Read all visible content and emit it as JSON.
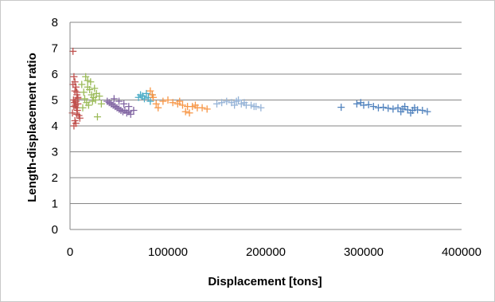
{
  "chart_data": {
    "type": "scatter",
    "title": "",
    "xlabel": "Displacement [tons]",
    "ylabel": "Length-displacement ratio",
    "xlim": [
      0,
      400000
    ],
    "ylim": [
      0,
      8
    ],
    "x_ticks": [
      "0",
      "100000",
      "200000",
      "300000",
      "400000"
    ],
    "y_ticks": [
      "0",
      "1",
      "2",
      "3",
      "4",
      "5",
      "6",
      "7",
      "8"
    ],
    "grid": "horizontal",
    "legend": "none",
    "marker": "plus",
    "series": [
      {
        "color": "#c0504d",
        "x": [
          3000,
          4000,
          5000,
          6000,
          7000,
          8000,
          3500,
          4500,
          5500,
          6500,
          7500,
          2500,
          9000,
          10000,
          5000,
          6000,
          4000,
          7000,
          8000,
          3000,
          6000,
          5000,
          7000,
          4000,
          8000
        ],
        "y": [
          6.88,
          5.9,
          5.7,
          5.5,
          5.3,
          5.1,
          5.0,
          4.9,
          4.8,
          4.7,
          4.6,
          4.5,
          4.4,
          4.3,
          4.2,
          4.1,
          4.0,
          5.2,
          4.85,
          5.6,
          4.95,
          5.35,
          4.45,
          4.75,
          5.05
        ]
      },
      {
        "color": "#9bbb59",
        "x": [
          12000,
          14000,
          16000,
          18000,
          20000,
          22000,
          24000,
          26000,
          17000,
          19000,
          21000,
          15000,
          23000,
          28000,
          30000,
          32000,
          25000,
          18000,
          13000,
          27000
        ],
        "y": [
          5.6,
          5.3,
          5.9,
          5.5,
          5.4,
          5.2,
          5.1,
          5.0,
          4.9,
          4.8,
          5.7,
          5.05,
          4.95,
          4.35,
          5.15,
          4.85,
          5.45,
          5.75,
          4.7,
          5.25
        ]
      },
      {
        "color": "#8064a2",
        "x": [
          38000,
          40000,
          42000,
          44000,
          46000,
          48000,
          50000,
          52000,
          54000,
          56000,
          58000,
          60000,
          62000,
          45000,
          50000,
          55000,
          60000,
          65000
        ],
        "y": [
          4.95,
          4.9,
          4.85,
          4.8,
          4.75,
          4.7,
          4.65,
          4.6,
          4.55,
          4.6,
          4.5,
          4.55,
          4.45,
          5.05,
          4.95,
          4.85,
          4.75,
          4.6
        ]
      },
      {
        "color": "#4bacc6",
        "x": [
          70000,
          72000,
          74000,
          76000,
          78000,
          80000,
          82000,
          84000
        ],
        "y": [
          5.1,
          5.2,
          5.15,
          5.05,
          5.25,
          5.1,
          4.95,
          5.2
        ]
      },
      {
        "color": "#f79646",
        "x": [
          82000,
          85000,
          88000,
          90000,
          95000,
          100000,
          105000,
          110000,
          115000,
          120000,
          125000,
          130000,
          135000,
          140000,
          112000,
          118000,
          122000,
          128000,
          84000
        ],
        "y": [
          5.35,
          5.1,
          4.85,
          4.7,
          4.95,
          5.0,
          4.9,
          4.85,
          4.8,
          4.75,
          4.75,
          4.7,
          4.7,
          4.65,
          4.95,
          4.55,
          4.5,
          4.8,
          5.2
        ]
      },
      {
        "color": "#95b3d7",
        "x": [
          150000,
          155000,
          160000,
          165000,
          170000,
          172000,
          175000,
          180000,
          185000,
          190000,
          195000,
          178000,
          168000,
          188000
        ],
        "y": [
          4.85,
          4.9,
          4.95,
          4.9,
          4.95,
          5.0,
          4.85,
          4.8,
          4.8,
          4.75,
          4.7,
          4.9,
          4.8,
          4.75
        ]
      },
      {
        "color": "#4f81bd",
        "x": [
          277000,
          293000,
          297000,
          300000,
          305000,
          310000,
          315000,
          320000,
          325000,
          330000,
          335000,
          340000,
          345000,
          350000,
          355000,
          360000,
          365000,
          342000,
          348000,
          352000,
          338000
        ],
        "y": [
          4.72,
          4.85,
          4.9,
          4.8,
          4.82,
          4.75,
          4.7,
          4.72,
          4.68,
          4.65,
          4.7,
          4.65,
          4.62,
          4.6,
          4.62,
          4.6,
          4.55,
          4.75,
          4.5,
          4.7,
          4.55
        ]
      }
    ]
  }
}
